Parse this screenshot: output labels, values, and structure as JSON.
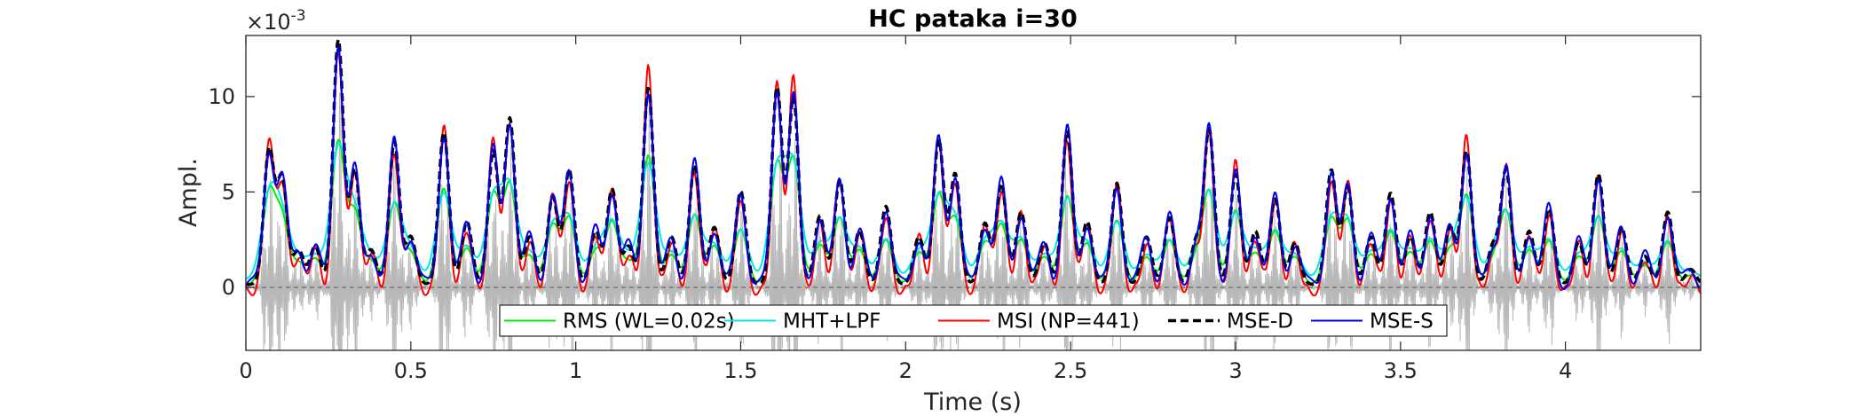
{
  "chart_data": {
    "type": "line",
    "title": "HC pataka i=30",
    "xlabel": "Time (s)",
    "ylabel": "Ampl.",
    "y_exponent_label": "×10",
    "y_exponent_power": "-3",
    "xlim": [
      0,
      4.41
    ],
    "ylim": [
      -3.3,
      13.2
    ],
    "x_ticks": [
      0,
      0.5,
      1,
      1.5,
      2,
      2.5,
      3,
      3.5,
      4
    ],
    "x_tick_labels": [
      "0",
      "0.5",
      "1",
      "1.5",
      "2",
      "2.5",
      "3",
      "3.5",
      "4"
    ],
    "y_ticks": [
      0,
      5,
      10
    ],
    "y_tick_labels": [
      "0",
      "5",
      "10"
    ],
    "grid": false,
    "legend_position": "bottom-center",
    "colors": {
      "waveform": "#b8b8b8",
      "rms": "#00ee00",
      "mht": "#00e8e8",
      "msi": "#ff0000",
      "msed": "#000000",
      "mses": "#0000ee",
      "zero_line": "#555555"
    },
    "peaks": [
      {
        "t": 0.07,
        "h": 7.0
      },
      {
        "t": 0.11,
        "h": 5.5
      },
      {
        "t": 0.16,
        "h": 1.8
      },
      {
        "t": 0.21,
        "h": 2.0
      },
      {
        "t": 0.28,
        "h": 12.8
      },
      {
        "t": 0.33,
        "h": 6.0
      },
      {
        "t": 0.38,
        "h": 1.8
      },
      {
        "t": 0.45,
        "h": 7.5
      },
      {
        "t": 0.5,
        "h": 2.5
      },
      {
        "t": 0.6,
        "h": 8.0
      },
      {
        "t": 0.67,
        "h": 3.3
      },
      {
        "t": 0.75,
        "h": 7.0
      },
      {
        "t": 0.8,
        "h": 8.7
      },
      {
        "t": 0.86,
        "h": 2.5
      },
      {
        "t": 0.93,
        "h": 4.6
      },
      {
        "t": 0.98,
        "h": 6.0
      },
      {
        "t": 1.06,
        "h": 2.8
      },
      {
        "t": 1.11,
        "h": 5.0
      },
      {
        "t": 1.16,
        "h": 2.0
      },
      {
        "t": 1.22,
        "h": 10.3
      },
      {
        "t": 1.29,
        "h": 2.5
      },
      {
        "t": 1.36,
        "h": 6.3
      },
      {
        "t": 1.42,
        "h": 3.0
      },
      {
        "t": 1.5,
        "h": 4.9
      },
      {
        "t": 1.61,
        "h": 10.3
      },
      {
        "t": 1.66,
        "h": 9.8
      },
      {
        "t": 1.74,
        "h": 3.6
      },
      {
        "t": 1.8,
        "h": 5.5
      },
      {
        "t": 1.86,
        "h": 2.8
      },
      {
        "t": 1.94,
        "h": 4.1
      },
      {
        "t": 2.04,
        "h": 2.5
      },
      {
        "t": 2.1,
        "h": 7.6
      },
      {
        "t": 2.15,
        "h": 5.8
      },
      {
        "t": 2.24,
        "h": 3.2
      },
      {
        "t": 2.29,
        "h": 5.3
      },
      {
        "t": 2.35,
        "h": 3.8
      },
      {
        "t": 2.42,
        "h": 2.2
      },
      {
        "t": 2.49,
        "h": 8.1
      },
      {
        "t": 2.55,
        "h": 3.3
      },
      {
        "t": 2.64,
        "h": 5.3
      },
      {
        "t": 2.73,
        "h": 2.5
      },
      {
        "t": 2.8,
        "h": 3.5
      },
      {
        "t": 2.88,
        "h": 2.2
      },
      {
        "t": 2.92,
        "h": 8.1
      },
      {
        "t": 3.0,
        "h": 5.8
      },
      {
        "t": 3.06,
        "h": 2.8
      },
      {
        "t": 3.12,
        "h": 4.5
      },
      {
        "t": 3.18,
        "h": 2.2
      },
      {
        "t": 3.29,
        "h": 6.0
      },
      {
        "t": 3.34,
        "h": 5.1
      },
      {
        "t": 3.41,
        "h": 2.5
      },
      {
        "t": 3.47,
        "h": 4.8
      },
      {
        "t": 3.53,
        "h": 2.5
      },
      {
        "t": 3.59,
        "h": 3.8
      },
      {
        "t": 3.65,
        "h": 3.0
      },
      {
        "t": 3.7,
        "h": 7.0
      },
      {
        "t": 3.78,
        "h": 2.0
      },
      {
        "t": 3.82,
        "h": 6.0
      },
      {
        "t": 3.89,
        "h": 2.8
      },
      {
        "t": 3.95,
        "h": 4.0
      },
      {
        "t": 4.04,
        "h": 2.2
      },
      {
        "t": 4.1,
        "h": 5.8
      },
      {
        "t": 4.17,
        "h": 3.0
      },
      {
        "t": 4.24,
        "h": 1.5
      },
      {
        "t": 4.31,
        "h": 3.8
      },
      {
        "t": 4.38,
        "h": 0.8
      }
    ],
    "series": [
      {
        "name": "RMS (WL=0.02s)",
        "key": "rms",
        "width": 2
      },
      {
        "name": "MHT+LPF",
        "key": "mht",
        "width": 2
      },
      {
        "name": "MSI (NP=441)",
        "key": "msi",
        "width": 2
      },
      {
        "name": "MSE-D",
        "key": "msed",
        "width": 3.5,
        "dash": "9,5"
      },
      {
        "name": "MSE-S",
        "key": "mses",
        "width": 2
      }
    ]
  }
}
